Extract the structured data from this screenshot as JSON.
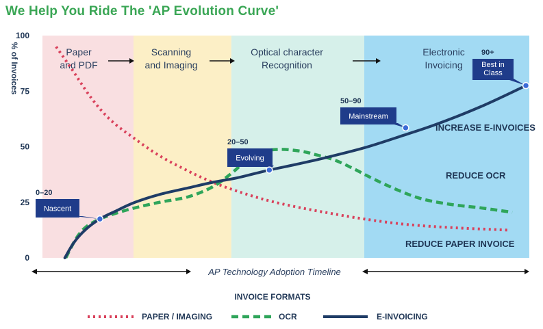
{
  "page_title": "We Help You Ride The 'AP Evolution Curve'",
  "colors": {
    "title": "#3aa655",
    "paper": "#d9415b",
    "ocr": "#2fa55a",
    "einvoicing": "#1f3c66",
    "stage_paper": "#f9dfe1",
    "stage_scan": "#fcefc6",
    "stage_ocr": "#d6f0ea",
    "stage_elec": "#a2daf3",
    "callout": "#1f3c8a"
  },
  "chart_data": {
    "type": "line",
    "ylabel": "% of Invoices",
    "xlabel": "AP Technology Adoption Timeline",
    "ylim": [
      0,
      100
    ],
    "yticks": [
      0,
      25,
      50,
      75,
      100
    ],
    "xlim": [
      0,
      100
    ],
    "stages": [
      {
        "label_lines": [
          "Paper",
          "and PDF"
        ],
        "start": 0,
        "end": 18.7
      },
      {
        "label_lines": [
          "Scanning",
          "and Imaging"
        ],
        "start": 18.7,
        "end": 38.8
      },
      {
        "label_lines": [
          "Optical character",
          "Recognition"
        ],
        "start": 38.8,
        "end": 66.1
      },
      {
        "label_lines": [
          "Electronic",
          "Invoicing"
        ],
        "start": 66.1,
        "end": 100
      }
    ],
    "series": [
      {
        "name": "PAPER / IMAGING",
        "key": "paper",
        "style": "dotted",
        "x": [
          2.8,
          6,
          10,
          14,
          18.7,
          24,
          30,
          35,
          40,
          46,
          52,
          58,
          66,
          75,
          85,
          95.7
        ],
        "y": [
          95,
          85,
          72,
          62,
          54,
          46,
          39,
          34,
          30,
          26,
          23,
          20.5,
          17.5,
          15,
          13.5,
          12.5
        ]
      },
      {
        "name": "OCR",
        "key": "ocr",
        "style": "dashed",
        "x": [
          4.8,
          7,
          9,
          11.8,
          15,
          19,
          24,
          30,
          35,
          38.8,
          42,
          45,
          49,
          53,
          56,
          60,
          64,
          68,
          73,
          78,
          84,
          90,
          96.5
        ],
        "y": [
          0,
          9,
          14,
          17.5,
          20,
          22.5,
          25,
          27.5,
          32,
          38,
          44,
          47.8,
          48.8,
          48,
          46.5,
          44,
          40,
          35.5,
          30.5,
          26.5,
          24,
          22.5,
          20.5
        ]
      },
      {
        "name": "E-INVOICING",
        "key": "einv",
        "style": "solid",
        "x": [
          4.6,
          6.5,
          9,
          11.8,
          15,
          19,
          24,
          30,
          35,
          40,
          46.6,
          52,
          58,
          66.1,
          74,
          79.5,
          85,
          90,
          95,
          99.3
        ],
        "y": [
          0,
          7,
          13,
          17.5,
          21,
          25,
          28.5,
          31.5,
          34,
          36,
          39.5,
          42,
          45,
          49.5,
          55,
          59,
          63.5,
          68,
          73,
          77.5
        ]
      }
    ],
    "milestones": [
      {
        "range": "0–20",
        "label_lines": [
          "Nascent"
        ],
        "x": 11.8,
        "y": 17.5
      },
      {
        "range": "20–50",
        "label_lines": [
          "Evolving"
        ],
        "x": 46.6,
        "y": 39.5
      },
      {
        "range": "50–90",
        "label_lines": [
          "Mainstream"
        ],
        "x": 74.6,
        "y": 58.5
      },
      {
        "range": "90+",
        "label_lines": [
          "Best in",
          "Class"
        ],
        "x": 99.3,
        "y": 77.5
      }
    ],
    "annotations": [
      "INCREASE E-INVOICES",
      "REDUCE OCR",
      "REDUCE PAPER INVOICE"
    ],
    "legend": {
      "title": "INVOICE FORMATS",
      "placement": "bottom",
      "items": [
        "PAPER / IMAGING",
        "OCR",
        "E-INVOICING"
      ]
    },
    "grid": false
  }
}
